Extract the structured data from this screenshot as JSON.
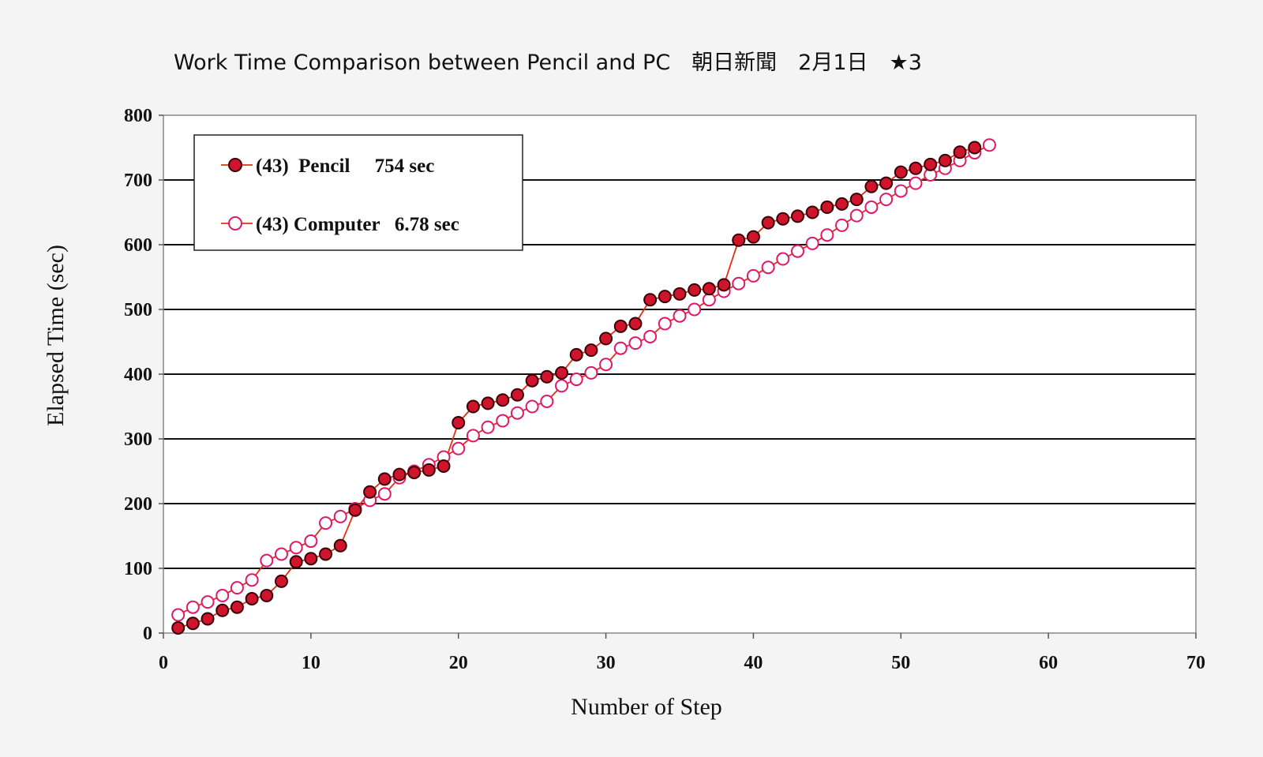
{
  "chart_data": {
    "type": "line",
    "title": "Work Time Comparison between Pencil and PC　朝日新聞　2月1日　★3",
    "xlabel": "Number of Step",
    "ylabel": "Elapsed Time (sec)",
    "xlim": [
      0,
      70
    ],
    "ylim": [
      0,
      800
    ],
    "xticks": [
      0,
      10,
      20,
      30,
      40,
      50,
      60,
      70
    ],
    "yticks": [
      0,
      100,
      200,
      300,
      400,
      500,
      600,
      700,
      800
    ],
    "grid": "horizontal",
    "legend_position": "top-left",
    "series": [
      {
        "name": "(43)  Pencil     754 sec",
        "marker": "filled-circle",
        "marker_fill": "#d0142c",
        "marker_edge": "#3a0008",
        "line_color": "#e03010",
        "x": [
          1,
          2,
          3,
          4,
          5,
          6,
          7,
          8,
          9,
          10,
          11,
          12,
          13,
          14,
          15,
          16,
          17,
          18,
          19,
          20,
          21,
          22,
          23,
          24,
          25,
          26,
          27,
          28,
          29,
          30,
          31,
          32,
          33,
          34,
          35,
          36,
          37,
          38,
          39,
          40,
          41,
          42,
          43,
          44,
          45,
          46,
          47,
          48,
          49,
          50,
          51,
          52,
          53,
          54,
          55
        ],
        "y": [
          8,
          15,
          22,
          35,
          40,
          53,
          58,
          80,
          110,
          115,
          122,
          135,
          190,
          218,
          238,
          245,
          248,
          252,
          258,
          325,
          350,
          355,
          360,
          368,
          390,
          396,
          402,
          430,
          437,
          455,
          474,
          478,
          515,
          520,
          524,
          530,
          532,
          538,
          607,
          612,
          634,
          640,
          644,
          650,
          658,
          663,
          670,
          690,
          695,
          712,
          718,
          724,
          730,
          743,
          750
        ]
      },
      {
        "name": "(43) Computer   6.78 sec",
        "marker": "open-circle",
        "marker_fill": "#ffffff",
        "marker_edge": "#e0186a",
        "line_color": "#e03010",
        "x": [
          1,
          2,
          3,
          4,
          5,
          6,
          7,
          8,
          9,
          10,
          11,
          12,
          13,
          14,
          15,
          16,
          17,
          18,
          19,
          20,
          21,
          22,
          23,
          24,
          25,
          26,
          27,
          28,
          29,
          30,
          31,
          32,
          33,
          34,
          35,
          36,
          37,
          38,
          39,
          40,
          41,
          42,
          43,
          44,
          45,
          46,
          47,
          48,
          49,
          50,
          51,
          52,
          53,
          54,
          55,
          56
        ],
        "y": [
          28,
          40,
          48,
          58,
          70,
          82,
          112,
          122,
          132,
          142,
          170,
          180,
          192,
          205,
          215,
          240,
          250,
          260,
          272,
          285,
          305,
          318,
          328,
          340,
          350,
          358,
          382,
          392,
          402,
          415,
          440,
          448,
          458,
          478,
          490,
          500,
          515,
          528,
          540,
          552,
          565,
          578,
          590,
          602,
          615,
          630,
          645,
          658,
          670,
          683,
          695,
          708,
          718,
          730,
          742,
          754
        ]
      }
    ]
  }
}
